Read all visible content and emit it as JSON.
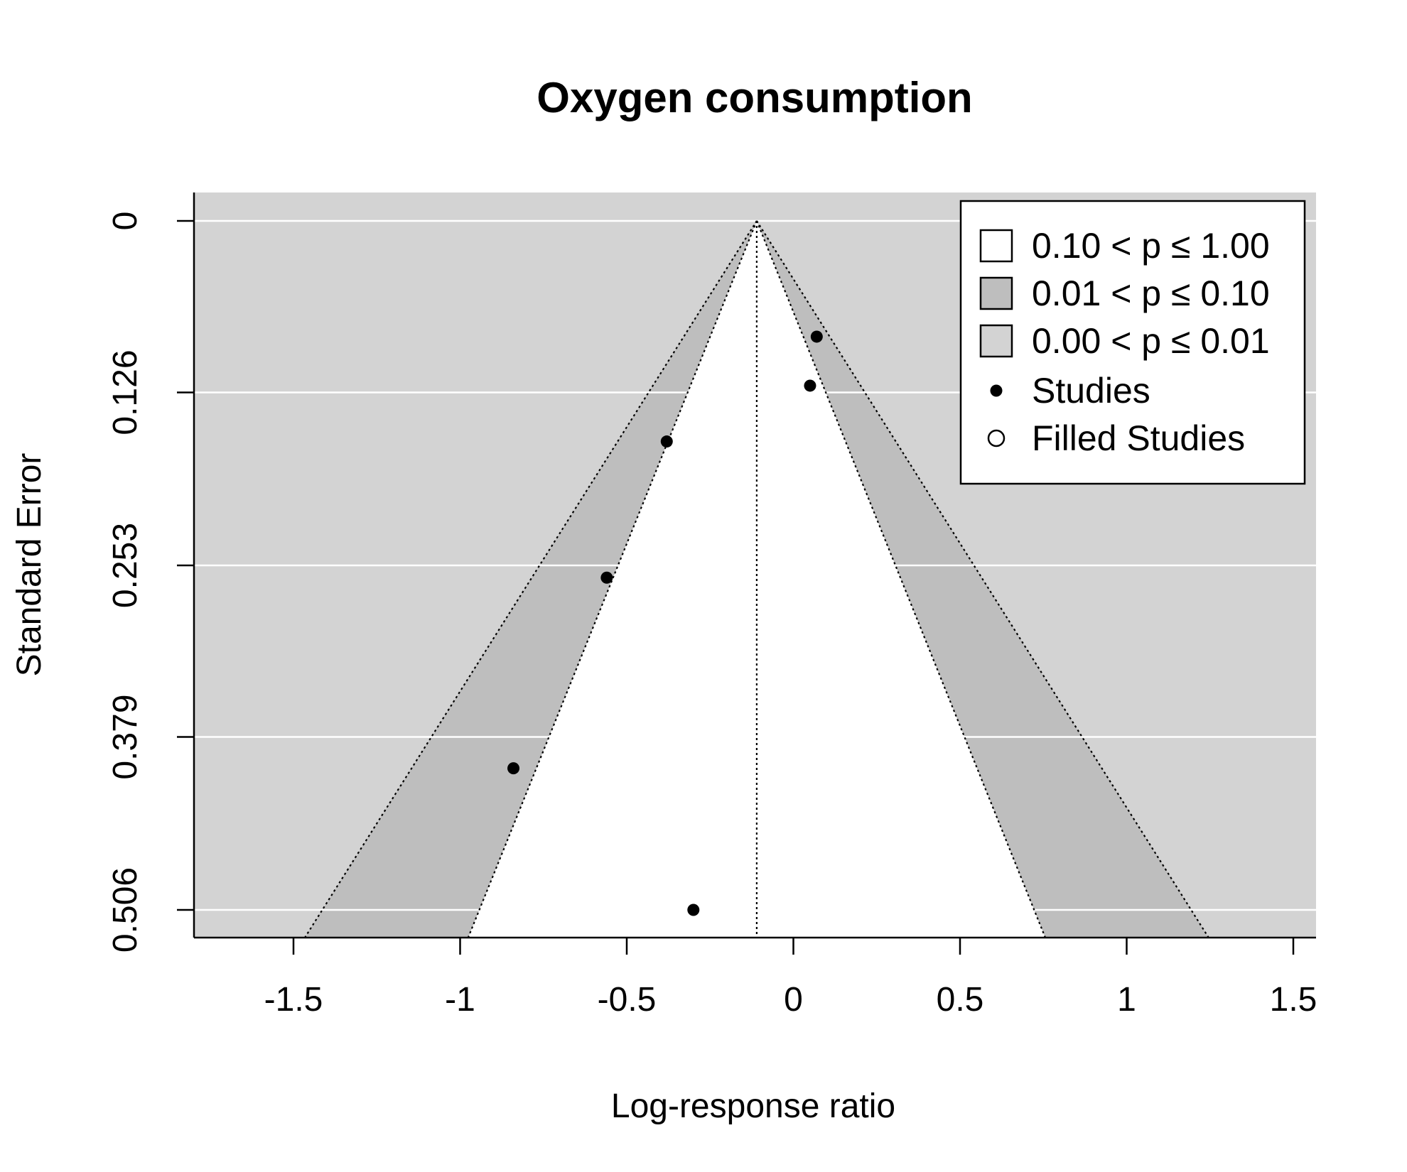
{
  "chart_data": {
    "type": "scatter",
    "subtype": "contour-enhanced funnel plot",
    "title": "Oxygen consumption",
    "xlabel": "Log-response ratio",
    "ylabel": "Standard Error",
    "xlim": [
      -1.8,
      1.5
    ],
    "ylim": [
      0.506,
      0
    ],
    "y_reversed": true,
    "x_ticks": [
      -1.5,
      -1,
      -0.5,
      0,
      0.5,
      1,
      1.5
    ],
    "x_tick_labels": [
      "-1.5",
      "-1",
      "-0.5",
      "0",
      "0.5",
      "1",
      "1.5"
    ],
    "y_ticks": [
      0,
      0.126,
      0.253,
      0.379,
      0.506
    ],
    "y_tick_labels": [
      "0",
      "0.126",
      "0.253",
      "0.379",
      "0.506"
    ],
    "center_estimate": -0.11,
    "se_max": 0.526,
    "contours": [
      {
        "label": "0.10 < p ≤ 1.00",
        "z": 1.645,
        "color": "#ffffff"
      },
      {
        "label": "0.01 < p ≤ 0.10",
        "z": 2.576,
        "color": "#bebebe"
      },
      {
        "label": "0.00 < p ≤ 0.01",
        "color": "#d3d3d3"
      }
    ],
    "series": [
      {
        "name": "Studies",
        "marker": "filled-circle",
        "points": [
          {
            "x": 0.07,
            "y": 0.085
          },
          {
            "x": 0.05,
            "y": 0.121
          },
          {
            "x": -0.38,
            "y": 0.162
          },
          {
            "x": -0.56,
            "y": 0.262
          },
          {
            "x": -0.84,
            "y": 0.402
          },
          {
            "x": -0.3,
            "y": 0.506
          }
        ]
      },
      {
        "name": "Filled Studies",
        "marker": "open-circle",
        "points": []
      }
    ],
    "grid": {
      "horizontal": true,
      "color": "#ffffff"
    },
    "legend_position": "top-right",
    "legend": [
      {
        "symbol": "square-white",
        "label": "0.10 < p ≤ 1.00"
      },
      {
        "symbol": "square-darkgray",
        "label": "0.01 < p ≤ 0.10"
      },
      {
        "symbol": "square-lightgray",
        "label": "0.00 < p ≤ 0.01"
      },
      {
        "symbol": "filled-circle",
        "label": "Studies"
      },
      {
        "symbol": "open-circle",
        "label": "Filled Studies"
      }
    ]
  }
}
